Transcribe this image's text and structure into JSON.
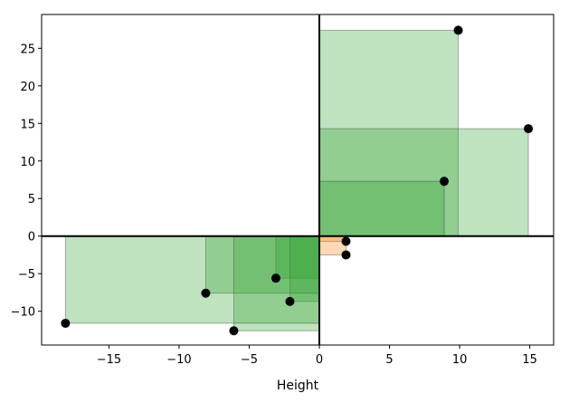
{
  "chart_data": {
    "type": "scatter",
    "title": "",
    "xlabel": "Height",
    "ylabel": "",
    "xlim": [
      -19.8,
      16.7
    ],
    "ylim": [
      -14.5,
      29.5
    ],
    "xticks": [
      -15,
      -10,
      -5,
      0,
      5,
      10,
      15
    ],
    "yticks": [
      -10,
      -5,
      0,
      5,
      10,
      15,
      20,
      25
    ],
    "xtick_labels": [
      "−15",
      "−10",
      "−5",
      "0",
      "5",
      "10",
      "15"
    ],
    "ytick_labels": [
      "−10",
      "−5",
      "0",
      "5",
      "10",
      "15",
      "20",
      "25"
    ],
    "grid": false,
    "points": [
      {
        "x": 9.9,
        "y": 27.4
      },
      {
        "x": 14.9,
        "y": 14.3
      },
      {
        "x": 8.9,
        "y": 7.3
      },
      {
        "x": 1.9,
        "y": -0.7
      },
      {
        "x": 1.9,
        "y": -2.5
      },
      {
        "x": -3.1,
        "y": -5.6
      },
      {
        "x": -2.1,
        "y": -8.7
      },
      {
        "x": -8.1,
        "y": -7.6
      },
      {
        "x": -6.1,
        "y": -12.6
      },
      {
        "x": -18.1,
        "y": -11.6
      }
    ],
    "colors": {
      "positive_product": "#2ca02c",
      "negative_product": "#ff7f0e",
      "marker": "#000000",
      "zero_lines": "#000000"
    }
  }
}
